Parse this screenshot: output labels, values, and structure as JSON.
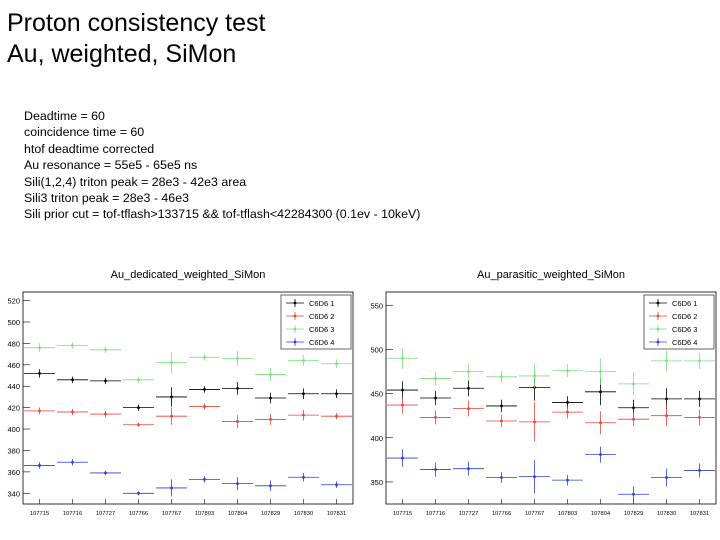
{
  "slide": {
    "title_lines": [
      "Proton consistency test",
      "Au, weighted, SiMon"
    ],
    "notes": [
      "Deadtime = 60",
      "coincidence time = 60",
      "htof deadtime corrected",
      "Au resonance = 55e5 - 65e5 ns",
      "Sili(1,2,4) triton peak = 28e3 - 42e3 area",
      "Sili3 triton peak = 28e3 - 46e3",
      "Sili prior cut = tof-tflash>133715 && tof-tflash<42284300 (0.1ev - 10keV)"
    ]
  },
  "chart_data": [
    {
      "type": "scatter",
      "title": "Au_dedicated_weighted_SiMon",
      "xlabel": "",
      "ylabel": "",
      "categories": [
        "107715",
        "107716",
        "107727",
        "107766",
        "107767",
        "107803",
        "107804",
        "107829",
        "107830",
        "107831"
      ],
      "ylim": [
        330,
        528
      ],
      "yticks": [
        340,
        360,
        380,
        400,
        420,
        440,
        460,
        480,
        500,
        520
      ],
      "legend_position": "top-right",
      "series": [
        {
          "name": "C6D6 1",
          "color": "#000000",
          "values": [
            452,
            446,
            445,
            420,
            430,
            437,
            438,
            429,
            433,
            433
          ],
          "errors": [
            4,
            3,
            3,
            3,
            9,
            3,
            6,
            5,
            5,
            4
          ]
        },
        {
          "name": "C6D6 2",
          "color": "#e8443a",
          "values": [
            417,
            416,
            414,
            404,
            412,
            421,
            407,
            409,
            413,
            412
          ],
          "errors": [
            3,
            3,
            3,
            2,
            8,
            3,
            6,
            5,
            5,
            3
          ]
        },
        {
          "name": "C6D6 3",
          "color": "#7ee07e",
          "values": [
            476,
            478,
            474,
            446,
            462,
            467,
            466,
            451,
            464,
            461
          ],
          "errors": [
            4,
            3,
            3,
            3,
            10,
            3,
            7,
            6,
            5,
            4
          ]
        },
        {
          "name": "C6D6 4",
          "color": "#2b3fd6",
          "values": [
            366,
            369,
            359,
            340,
            345,
            353,
            349,
            347,
            355,
            348
          ],
          "errors": [
            3,
            3,
            2,
            2,
            8,
            3,
            6,
            5,
            4,
            3
          ]
        }
      ]
    },
    {
      "type": "scatter",
      "title": "Au_parasitic_weighted_SiMon",
      "xlabel": "",
      "ylabel": "",
      "categories": [
        "107715",
        "107716",
        "107727",
        "107766",
        "107767",
        "107803",
        "107804",
        "107829",
        "107830",
        "107831"
      ],
      "ylim": [
        325,
        565
      ],
      "yticks": [
        350,
        400,
        450,
        500,
        550
      ],
      "legend_position": "top-right",
      "series": [
        {
          "name": "C6D6 1",
          "color": "#000000",
          "values": [
            454,
            445,
            456,
            436,
            457,
            440,
            452,
            434,
            444,
            444
          ],
          "errors": [
            10,
            8,
            9,
            7,
            15,
            7,
            15,
            9,
            12,
            9
          ]
        },
        {
          "name": "C6D6 2",
          "color": "#e8443a",
          "values": [
            437,
            423,
            433,
            419,
            418,
            429,
            417,
            421,
            425,
            423
          ],
          "errors": [
            10,
            8,
            9,
            7,
            22,
            7,
            13,
            8,
            12,
            9
          ]
        },
        {
          "name": "C6D6 3",
          "color": "#7ee07e",
          "values": [
            490,
            467,
            475,
            469,
            470,
            476,
            475,
            461,
            487,
            487
          ],
          "errors": [
            12,
            8,
            9,
            7,
            14,
            7,
            15,
            13,
            12,
            9
          ]
        },
        {
          "name": "C6D6 4",
          "color": "#2b3fd6",
          "values": [
            377,
            364,
            365,
            355,
            356,
            352,
            381,
            336,
            355,
            363
          ],
          "errors": [
            10,
            8,
            8,
            6,
            19,
            6,
            9,
            9,
            10,
            8
          ]
        }
      ]
    }
  ]
}
